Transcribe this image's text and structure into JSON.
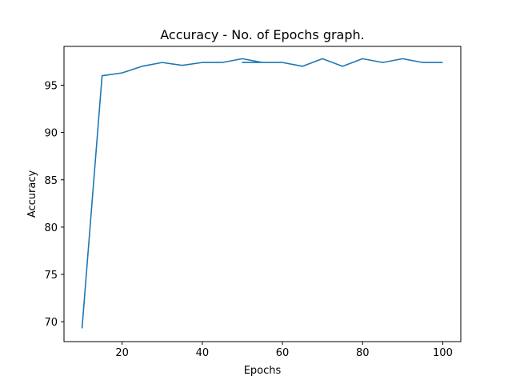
{
  "chart_data": {
    "type": "line",
    "title": "Accuracy - No. of Epochs graph.",
    "xlabel": "Epochs",
    "ylabel": "Accuracy",
    "xlim": [
      5.5,
      104.5
    ],
    "ylim": [
      67.9,
      99.1
    ],
    "xticks": [
      20,
      40,
      60,
      80,
      100
    ],
    "yticks": [
      70,
      75,
      80,
      85,
      90,
      95
    ],
    "grid": false,
    "series": [
      {
        "color": "#1f77b4",
        "x": [
          10,
          15,
          20,
          25,
          30,
          35,
          40,
          45,
          50,
          55,
          50,
          55,
          60,
          65,
          70,
          75,
          80,
          85,
          90,
          95,
          100
        ],
        "y": [
          69.3,
          96.0,
          96.3,
          97.0,
          97.4,
          97.1,
          97.4,
          97.4,
          97.8,
          97.4,
          97.4,
          97.4,
          97.4,
          97.0,
          97.8,
          97.0,
          97.8,
          97.4,
          97.8,
          97.4,
          97.4
        ]
      }
    ]
  }
}
